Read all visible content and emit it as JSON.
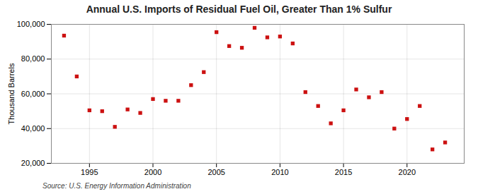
{
  "chart_data": {
    "type": "scatter",
    "title": "Annual U.S. Imports of Residual Fuel Oil, Greater Than 1% Sulfur",
    "ylabel": "Thousand Barrels",
    "source": "Source: U.S. Energy Information Administration",
    "x": [
      1993,
      1994,
      1995,
      1996,
      1997,
      1998,
      1999,
      2000,
      2001,
      2002,
      2003,
      2004,
      2005,
      2006,
      2007,
      2008,
      2009,
      2010,
      2011,
      2012,
      2013,
      2014,
      2015,
      2016,
      2017,
      2018,
      2019,
      2020,
      2021,
      2022,
      2023
    ],
    "values": [
      93500,
      70000,
      50500,
      50000,
      41000,
      51000,
      49000,
      57000,
      56000,
      56000,
      65000,
      72500,
      95500,
      87500,
      86500,
      98000,
      92500,
      93000,
      89000,
      61000,
      53000,
      43000,
      50500,
      62500,
      58000,
      61000,
      40000,
      45500,
      53000,
      28000,
      32000
    ],
    "color": "#cc1111",
    "marker": "square",
    "xlim": [
      1992.0,
      2024.5
    ],
    "xticks": [
      1995,
      2000,
      2005,
      2010,
      2015,
      2020
    ],
    "ylim": [
      20000,
      100000
    ],
    "yticks": [
      {
        "value": 20000,
        "label": "20,000"
      },
      {
        "value": 40000,
        "label": "40,000"
      },
      {
        "value": 60000,
        "label": "60,000"
      },
      {
        "value": 80000,
        "label": "80,000"
      },
      {
        "value": 100000,
        "label": "100,000"
      }
    ],
    "grid": true
  }
}
